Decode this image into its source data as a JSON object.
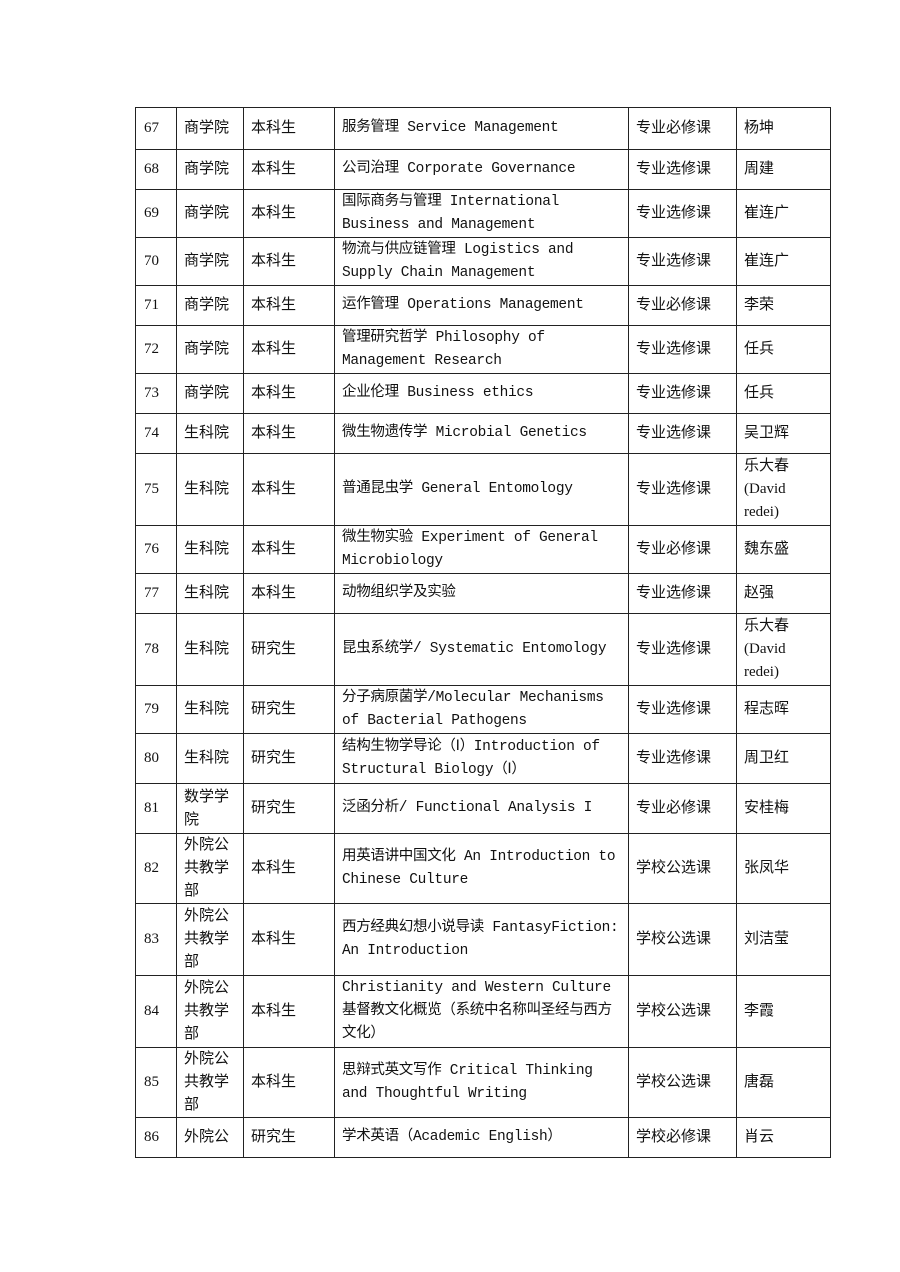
{
  "table": {
    "rows": [
      {
        "no": "67",
        "college": "商学院",
        "level": "本科生",
        "course": "服务管理 Service Management",
        "type": "专业必修课",
        "teacher": "杨坤"
      },
      {
        "no": "68",
        "college": "商学院",
        "level": "本科生",
        "course": "公司治理 Corporate Governance",
        "type": "专业选修课",
        "teacher": "周建"
      },
      {
        "no": "69",
        "college": "商学院",
        "level": "本科生",
        "course": "国际商务与管理 International Business and Management",
        "type": "专业选修课",
        "teacher": "崔连广"
      },
      {
        "no": "70",
        "college": "商学院",
        "level": "本科生",
        "course": "物流与供应链管理 Logistics and Supply Chain Management",
        "type": "专业选修课",
        "teacher": "崔连广"
      },
      {
        "no": "71",
        "college": "商学院",
        "level": "本科生",
        "course": "运作管理 Operations Management",
        "type": "专业必修课",
        "teacher": "李荣"
      },
      {
        "no": "72",
        "college": "商学院",
        "level": "本科生",
        "course": "管理研究哲学 Philosophy of Management Research",
        "type": "专业选修课",
        "teacher": "任兵"
      },
      {
        "no": "73",
        "college": "商学院",
        "level": "本科生",
        "course": "企业伦理 Business ethics",
        "type": "专业选修课",
        "teacher": "任兵"
      },
      {
        "no": "74",
        "college": "生科院",
        "level": "本科生",
        "course": "微生物遗传学 Microbial Genetics",
        "type": "专业选修课",
        "teacher": "吴卫辉"
      },
      {
        "no": "75",
        "college": "生科院",
        "level": "本科生",
        "course": "普通昆虫学 General Entomology",
        "type": "专业选修课",
        "teacher": "乐大春(David redei)"
      },
      {
        "no": "76",
        "college": "生科院",
        "level": "本科生",
        "course": "微生物实验 Experiment of General Microbiology",
        "type": "专业必修课",
        "teacher": "魏东盛"
      },
      {
        "no": "77",
        "college": "生科院",
        "level": "本科生",
        "course": "动物组织学及实验",
        "type": "专业选修课",
        "teacher": "赵强"
      },
      {
        "no": "78",
        "college": "生科院",
        "level": "研究生",
        "course": "昆虫系统学/ Systematic Entomology",
        "type": "专业选修课",
        "teacher": "乐大春(David redei)"
      },
      {
        "no": "79",
        "college": "生科院",
        "level": "研究生",
        "course": "分子病原菌学/Molecular Mechanisms of Bacterial Pathogens",
        "type": "专业选修课",
        "teacher": "程志晖"
      },
      {
        "no": "80",
        "college": "生科院",
        "level": "研究生",
        "course": "结构生物学导论（Ⅰ）Introduction of Structural Biology（Ⅰ）",
        "type": "专业选修课",
        "teacher": "周卫红"
      },
      {
        "no": "81",
        "college": "数学学院",
        "level": "研究生",
        "course": "泛函分析/ Functional  Analysis  I",
        "type": "专业必修课",
        "teacher": "安桂梅"
      },
      {
        "no": "82",
        "college": "外院公共教学部",
        "level": "本科生",
        "course": "用英语讲中国文化 An Introduction to Chinese Culture",
        "type": "学校公选课",
        "teacher": "张凤华"
      },
      {
        "no": "83",
        "college": "外院公共教学部",
        "level": "本科生",
        "course": "西方经典幻想小说导读 FantasyFiction: An Introduction",
        "type": "学校公选课",
        "teacher": "刘洁莹"
      },
      {
        "no": "84",
        "college": "外院公共教学部",
        "level": "本科生",
        "course": "Christianity and Western Culture 基督教文化概览（系统中名称叫圣经与西方文化）",
        "type": "学校公选课",
        "teacher": "李霞"
      },
      {
        "no": "85",
        "college": "外院公共教学部",
        "level": "本科生",
        "course": "思辩式英文写作 Critical Thinking and Thoughtful Writing",
        "type": "学校公选课",
        "teacher": "唐磊"
      },
      {
        "no": "86",
        "college": "外院公",
        "level": "研究生",
        "course": "学术英语（Academic English）",
        "type": "学校必修课",
        "teacher": "肖云"
      }
    ]
  }
}
